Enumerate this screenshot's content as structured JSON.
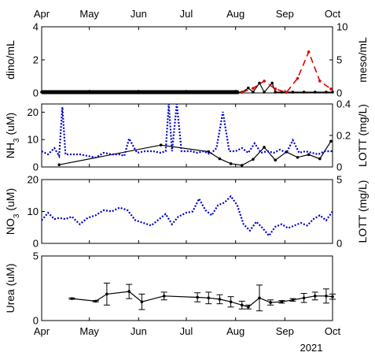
{
  "chart_data": [
    {
      "type": "line",
      "panel": "dino-meso",
      "top_month_labels": [
        "Apr",
        "May",
        "Jun",
        "Jul",
        "Aug",
        "Sep",
        "Oct"
      ],
      "ylabel": "dino/mL",
      "ylabel_right": "meso/mL",
      "ylim": [
        0,
        4
      ],
      "yticks": [
        "0",
        "2",
        "4"
      ],
      "ylim_right": [
        0,
        10
      ],
      "yticks_right": [
        "0",
        "5",
        "10"
      ],
      "right_color": "#dd0000",
      "series": [
        {
          "axis": "left",
          "style": "solid",
          "color": "#000000",
          "x": [
            "2021-04-01",
            "2021-04-08",
            "2021-04-15",
            "2021-04-22",
            "2021-04-29",
            "2021-05-06",
            "2021-05-13",
            "2021-05-20",
            "2021-05-27",
            "2021-06-03",
            "2021-06-10",
            "2021-06-17",
            "2021-06-24",
            "2021-07-01",
            "2021-07-08",
            "2021-07-15",
            "2021-07-22",
            "2021-07-29",
            "2021-08-05",
            "2021-08-09",
            "2021-08-12",
            "2021-08-16",
            "2021-08-19",
            "2021-08-24",
            "2021-08-26",
            "2021-08-30",
            "2021-09-06",
            "2021-09-13",
            "2021-09-20",
            "2021-09-27",
            "2021-10-01"
          ],
          "y": [
            0.05,
            0.05,
            0.05,
            0.05,
            0.05,
            0.05,
            0.05,
            0.05,
            0.05,
            0.05,
            0.05,
            0.05,
            0.05,
            0.05,
            0.05,
            0.05,
            0.05,
            0.05,
            0.05,
            0.3,
            0.05,
            0.6,
            0.05,
            0.6,
            0.05,
            0.05,
            0.05,
            0.05,
            0.05,
            0.05,
            0.05
          ]
        },
        {
          "axis": "right",
          "style": "dashed",
          "color": "#dd0000",
          "x": [
            "2021-08-05",
            "2021-08-12",
            "2021-08-19",
            "2021-08-26",
            "2021-09-02",
            "2021-09-09",
            "2021-09-16",
            "2021-09-23",
            "2021-09-30"
          ],
          "y": [
            0.1,
            0.7,
            1.8,
            0.6,
            0.1,
            2.2,
            6.2,
            1.8,
            0.6
          ]
        }
      ]
    },
    {
      "type": "line",
      "panel": "nh3-lott",
      "ylabel": "NH3 (uM)",
      "ylabel_right": "LOTT (mg/L)",
      "ylim": [
        0,
        23
      ],
      "yticks": [
        "0",
        "10",
        "20"
      ],
      "ylim_right": [
        0,
        0.4
      ],
      "yticks_right": [
        "0",
        "0.2",
        "0.4"
      ],
      "right_color": "#0000cc",
      "series": [
        {
          "axis": "left",
          "style": "solid",
          "color": "#000000",
          "x": [
            "2021-04-12",
            "2021-06-15",
            "2021-07-15",
            "2021-07-22",
            "2021-07-29",
            "2021-08-05",
            "2021-08-12",
            "2021-08-19",
            "2021-08-26",
            "2021-09-02",
            "2021-09-09",
            "2021-09-16",
            "2021-09-23",
            "2021-09-30"
          ],
          "y": [
            0.8,
            8.0,
            5.6,
            3.0,
            1.2,
            0.6,
            2.8,
            7.2,
            2.5,
            5.5,
            3.5,
            4.5,
            3.0,
            9.4
          ]
        },
        {
          "axis": "right",
          "style": "dotted",
          "color": "#0000cc",
          "x": [
            "2021-04-01",
            "2021-04-05",
            "2021-04-09",
            "2021-04-12",
            "2021-04-14",
            "2021-04-16",
            "2021-04-20",
            "2021-04-25",
            "2021-04-30",
            "2021-05-05",
            "2021-05-10",
            "2021-05-15",
            "2021-05-20",
            "2021-05-23",
            "2021-05-26",
            "2021-05-31",
            "2021-06-05",
            "2021-06-10",
            "2021-06-15",
            "2021-06-18",
            "2021-06-20",
            "2021-06-22",
            "2021-06-25",
            "2021-06-28",
            "2021-07-01",
            "2021-07-04",
            "2021-07-08",
            "2021-07-12",
            "2021-07-16",
            "2021-07-20",
            "2021-07-24",
            "2021-07-28",
            "2021-08-01",
            "2021-08-05",
            "2021-08-09",
            "2021-08-13",
            "2021-08-17",
            "2021-08-21",
            "2021-08-25",
            "2021-08-29",
            "2021-09-02",
            "2021-09-06",
            "2021-09-10",
            "2021-09-14",
            "2021-09-18",
            "2021-09-22",
            "2021-09-26",
            "2021-10-01"
          ],
          "y": [
            0.1,
            0.08,
            0.12,
            0.07,
            0.38,
            0.08,
            0.08,
            0.08,
            0.07,
            0.06,
            0.09,
            0.08,
            0.08,
            0.07,
            0.18,
            0.09,
            0.1,
            0.1,
            0.09,
            0.1,
            0.4,
            0.1,
            0.4,
            0.1,
            0.1,
            0.1,
            0.09,
            0.1,
            0.08,
            0.12,
            0.35,
            0.1,
            0.1,
            0.12,
            0.09,
            0.15,
            0.09,
            0.1,
            0.09,
            0.11,
            0.09,
            0.17,
            0.09,
            0.1,
            0.09,
            0.08,
            0.1,
            0.1
          ]
        }
      ]
    },
    {
      "type": "line",
      "panel": "no3-lott",
      "ylabel": "NO3 (uM)",
      "ylabel_right": "LOTT (mg/L)",
      "ylim": [
        0,
        20
      ],
      "yticks": [
        "0",
        "10",
        "20"
      ],
      "ylim_right": [
        0,
        5
      ],
      "yticks_right": [
        "0",
        "5"
      ],
      "right_color": "#0000cc",
      "series": [
        {
          "axis": "right",
          "style": "dotted",
          "color": "#0000cc",
          "x": [
            "2021-04-01",
            "2021-04-05",
            "2021-04-09",
            "2021-04-12",
            "2021-04-16",
            "2021-04-20",
            "2021-04-25",
            "2021-04-30",
            "2021-05-05",
            "2021-05-10",
            "2021-05-15",
            "2021-05-20",
            "2021-05-25",
            "2021-05-30",
            "2021-06-04",
            "2021-06-09",
            "2021-06-14",
            "2021-06-18",
            "2021-06-22",
            "2021-06-26",
            "2021-07-01",
            "2021-07-05",
            "2021-07-09",
            "2021-07-13",
            "2021-07-17",
            "2021-07-21",
            "2021-07-25",
            "2021-07-29",
            "2021-08-02",
            "2021-08-06",
            "2021-08-10",
            "2021-08-14",
            "2021-08-18",
            "2021-08-22",
            "2021-08-26",
            "2021-08-30",
            "2021-09-03",
            "2021-09-07",
            "2021-09-11",
            "2021-09-15",
            "2021-09-19",
            "2021-09-23",
            "2021-09-27",
            "2021-10-01"
          ],
          "y": [
            1.8,
            2.4,
            1.9,
            2.0,
            1.9,
            2.1,
            1.5,
            2.0,
            2.2,
            2.6,
            2.5,
            2.8,
            2.6,
            1.8,
            1.6,
            1.4,
            1.9,
            2.3,
            1.5,
            2.1,
            2.4,
            2.5,
            3.5,
            2.6,
            2.2,
            3.0,
            3.2,
            3.7,
            3.0,
            1.5,
            1.0,
            1.7,
            1.2,
            0.6,
            1.3,
            1.5,
            1.2,
            1.4,
            1.6,
            1.4,
            1.9,
            2.2,
            1.8,
            2.5
          ]
        }
      ]
    },
    {
      "type": "line",
      "panel": "urea",
      "ylabel": "Urea (uM)",
      "ylim": [
        0,
        5
      ],
      "yticks": [
        "0",
        "5"
      ],
      "bottom_month_labels": [
        "Apr",
        "May",
        "Jun",
        "Jul",
        "Aug",
        "Sep",
        "Oct"
      ],
      "year_label": "2021",
      "series": [
        {
          "axis": "left",
          "style": "solid",
          "color": "#000000",
          "x": [
            "2021-04-20",
            "2021-05-05",
            "2021-05-12",
            "2021-05-26",
            "2021-06-03",
            "2021-06-17",
            "2021-07-08",
            "2021-07-15",
            "2021-07-22",
            "2021-07-29",
            "2021-08-05",
            "2021-08-09",
            "2021-08-16",
            "2021-08-23",
            "2021-08-30",
            "2021-09-06",
            "2021-09-13",
            "2021-09-20",
            "2021-09-27",
            "2021-10-01"
          ],
          "y": [
            1.7,
            1.5,
            2.05,
            2.25,
            1.45,
            1.9,
            1.8,
            1.75,
            1.65,
            1.45,
            1.2,
            1.05,
            1.75,
            1.4,
            1.45,
            1.6,
            1.75,
            1.9,
            1.9,
            1.85
          ],
          "err": [
            0.05,
            0.05,
            0.85,
            0.55,
            0.6,
            0.3,
            0.35,
            0.45,
            0.35,
            0.4,
            0.3,
            0.15,
            1.0,
            0.2,
            0.1,
            0.1,
            0.35,
            0.3,
            0.55,
            0.2
          ]
        }
      ]
    }
  ]
}
